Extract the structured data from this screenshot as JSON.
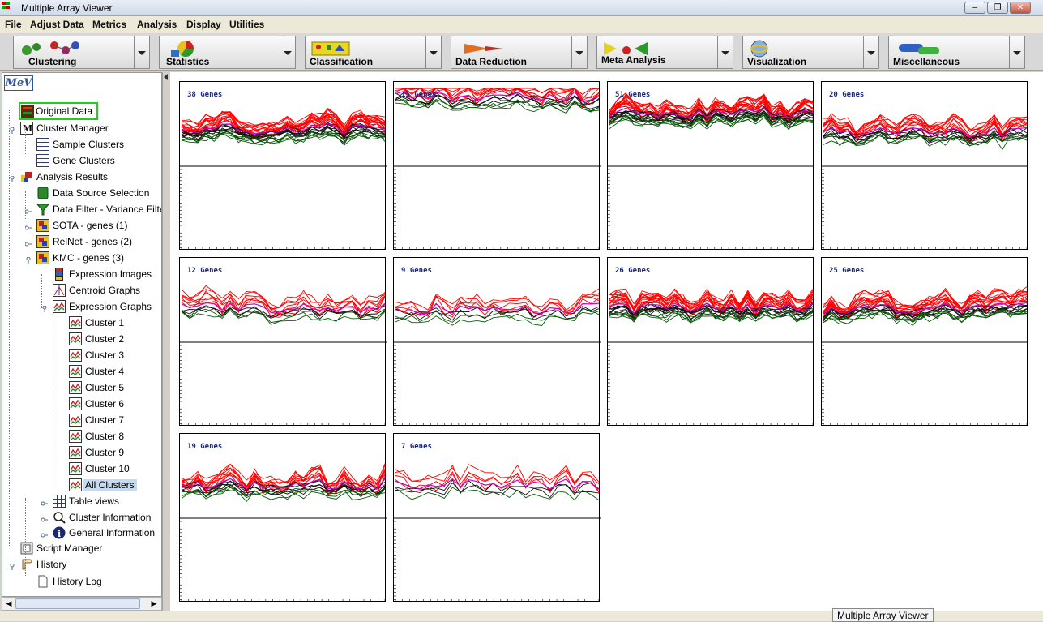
{
  "window": {
    "title": "Multiple Array Viewer"
  },
  "menu": [
    "File",
    "Adjust Data",
    "Metrics",
    "Analysis",
    "Display",
    "Utilities"
  ],
  "toolbar": [
    {
      "label": "Clustering",
      "icon": "clustering-icon"
    },
    {
      "label": "Statistics",
      "icon": "statistics-icon"
    },
    {
      "label": "Classification",
      "icon": "classification-icon"
    },
    {
      "label": "Data Reduction",
      "icon": "data-reduction-icon"
    },
    {
      "label": "Meta Analysis",
      "icon": "meta-analysis-icon"
    },
    {
      "label": "Visualization",
      "icon": "visualization-icon"
    },
    {
      "label": "Miscellaneous",
      "icon": "miscellaneous-icon"
    }
  ],
  "tree": {
    "logo": "MeV",
    "nodes": [
      {
        "label": "Original Data",
        "icon": "original-data-icon",
        "level": 0
      },
      {
        "label": "Cluster Manager",
        "icon": "cluster-manager-icon",
        "level": 0
      },
      {
        "label": "Sample Clusters",
        "icon": "table-icon",
        "level": 1
      },
      {
        "label": "Gene Clusters",
        "icon": "table-icon",
        "level": 1
      },
      {
        "label": "Analysis Results",
        "icon": "analysis-results-icon",
        "level": 0
      },
      {
        "label": "Data Source Selection",
        "icon": "data-source-icon",
        "level": 1
      },
      {
        "label": "Data Filter - Variance Filter",
        "icon": "filter-icon",
        "level": 1
      },
      {
        "label": "SOTA - genes (1)",
        "icon": "algorithm-icon",
        "level": 1
      },
      {
        "label": "RelNet - genes (2)",
        "icon": "algorithm-icon",
        "level": 1
      },
      {
        "label": "KMC - genes (3)",
        "icon": "algorithm-icon",
        "level": 1
      },
      {
        "label": "Expression Images",
        "icon": "expression-images-icon",
        "level": 2
      },
      {
        "label": "Centroid Graphs",
        "icon": "centroid-graph-icon",
        "level": 2
      },
      {
        "label": "Expression Graphs",
        "icon": "expression-graph-icon",
        "level": 2
      },
      {
        "label": "Cluster 1",
        "icon": "expression-graph-icon",
        "level": 3
      },
      {
        "label": "Cluster 2",
        "icon": "expression-graph-icon",
        "level": 3
      },
      {
        "label": "Cluster 3",
        "icon": "expression-graph-icon",
        "level": 3
      },
      {
        "label": "Cluster 4",
        "icon": "expression-graph-icon",
        "level": 3
      },
      {
        "label": "Cluster 5",
        "icon": "expression-graph-icon",
        "level": 3
      },
      {
        "label": "Cluster 6",
        "icon": "expression-graph-icon",
        "level": 3
      },
      {
        "label": "Cluster 7",
        "icon": "expression-graph-icon",
        "level": 3
      },
      {
        "label": "Cluster 8",
        "icon": "expression-graph-icon",
        "level": 3
      },
      {
        "label": "Cluster 9",
        "icon": "expression-graph-icon",
        "level": 3
      },
      {
        "label": "Cluster 10",
        "icon": "expression-graph-icon",
        "level": 3
      },
      {
        "label": "All Clusters",
        "icon": "expression-graph-icon",
        "level": 3,
        "selected": true
      },
      {
        "label": "Table views",
        "icon": "table-icon",
        "level": 2
      },
      {
        "label": "Cluster Information",
        "icon": "cluster-info-icon",
        "level": 2
      },
      {
        "label": "General Information",
        "icon": "info-icon",
        "level": 2
      },
      {
        "label": "Script Manager",
        "icon": "script-manager-icon",
        "level": 0
      },
      {
        "label": "History",
        "icon": "history-icon",
        "level": 0
      },
      {
        "label": "History Log",
        "icon": "document-icon",
        "level": 1
      }
    ]
  },
  "clusters": [
    {
      "label": "38 Genes",
      "n": 38,
      "profile": "dense-upper"
    },
    {
      "label": "15 Genes",
      "n": 15,
      "profile": "high"
    },
    {
      "label": "51 Genes",
      "n": 51,
      "profile": "very-high-dense"
    },
    {
      "label": "20 Genes",
      "n": 20,
      "profile": "mid"
    },
    {
      "label": "12 Genes",
      "n": 12,
      "profile": "mid"
    },
    {
      "label": "9 Genes",
      "n": 9,
      "profile": "mid"
    },
    {
      "label": "26 Genes",
      "n": 26,
      "profile": "mid"
    },
    {
      "label": "25 Genes",
      "n": 25,
      "profile": "mid"
    },
    {
      "label": "19 Genes",
      "n": 19,
      "profile": "mid"
    },
    {
      "label": "7 Genes",
      "n": 7,
      "profile": "mid"
    }
  ],
  "colors": {
    "up": "#ff0000",
    "down": "#0a5a0a",
    "mean": "#cc00cc",
    "neutral": "#111111"
  },
  "tooltip": "Multiple Array Viewer"
}
